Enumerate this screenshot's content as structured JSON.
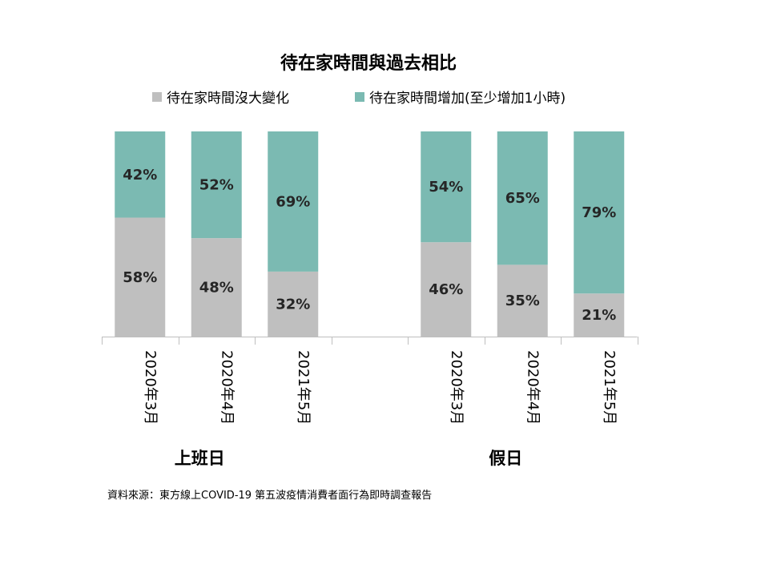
{
  "chart_data": {
    "type": "bar",
    "stacked": true,
    "normalized": true,
    "title": "待在家時間與過去相比",
    "groups": [
      "上班日",
      "假日"
    ],
    "categories": [
      "2020年3月",
      "2020年4月",
      "2021年5月",
      "2020年3月",
      "2020年4月",
      "2021年5月"
    ],
    "category_group": [
      0,
      0,
      0,
      1,
      1,
      1
    ],
    "series": [
      {
        "name": "待在家時間沒大變化",
        "color": "#bfbfbf",
        "values": [
          58,
          48,
          32,
          46,
          35,
          21
        ],
        "labels": [
          "58%",
          "48%",
          "32%",
          "46%",
          "35%",
          "21%"
        ]
      },
      {
        "name": "待在家時間增加(至少增加1小時)",
        "color": "#7bbab2",
        "values": [
          42,
          52,
          69,
          54,
          65,
          79
        ],
        "labels": [
          "42%",
          "52%",
          "69%",
          "54%",
          "65%",
          "79%"
        ]
      }
    ],
    "ylim": [
      0,
      100
    ],
    "legend_position": "top",
    "grid": false
  },
  "source": "資料來源：東方線上COVID-19 第五波疫情消費者面行為即時調查報告"
}
